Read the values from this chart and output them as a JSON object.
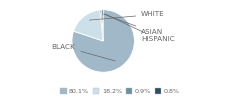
{
  "labels": [
    "BLACK",
    "WHITE",
    "ASIAN",
    "HISPANIC"
  ],
  "values": [
    80.1,
    18.2,
    0.9,
    0.8
  ],
  "colors": [
    "#a0b8c8",
    "#cde0ea",
    "#6b8fa3",
    "#2d4d63"
  ],
  "legend_labels": [
    "80.1%",
    "18.2%",
    "0.9%",
    "0.8%"
  ],
  "legend_colors": [
    "#a0b8c8",
    "#cde0ea",
    "#6b8fa3",
    "#2d4d63"
  ],
  "text_color": "#666666",
  "bg_color": "#ffffff",
  "startangle": 90,
  "font_size": 5.2
}
